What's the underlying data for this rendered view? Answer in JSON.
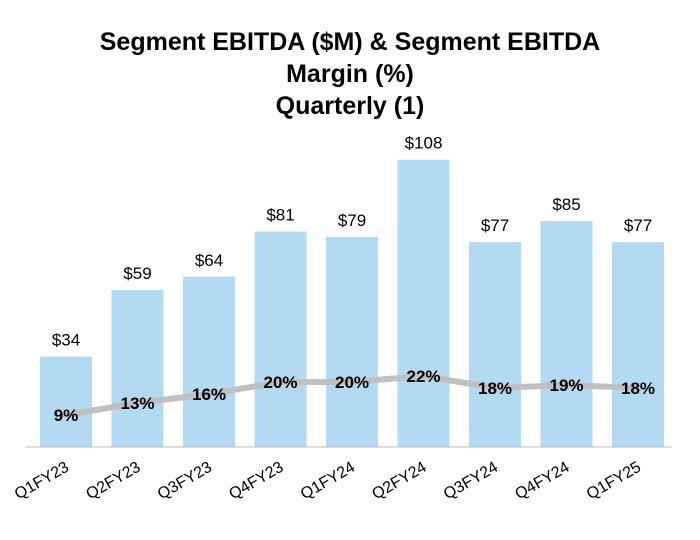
{
  "chart_data": {
    "type": "bar",
    "title_lines": [
      "Segment EBITDA ($M) & Segment EBITDA",
      "Margin (%)",
      "Quarterly (1)"
    ],
    "categories": [
      "Q1FY23",
      "Q2FY23",
      "Q3FY23",
      "Q4FY23",
      "Q1FY24",
      "Q2FY24",
      "Q3FY24",
      "Q4FY24",
      "Q1FY25"
    ],
    "series": [
      {
        "type": "bar",
        "values": [
          34,
          59,
          64,
          81,
          79,
          108,
          77,
          85,
          77
        ],
        "labels": [
          "$34",
          "$59",
          "$64",
          "$81",
          "$79",
          "$108",
          "$77",
          "$85",
          "$77"
        ],
        "color": "#b4d9f2"
      },
      {
        "type": "line",
        "values": [
          9,
          13,
          16,
          20,
          20,
          22,
          18,
          19,
          18
        ],
        "labels": [
          "9%",
          "13%",
          "16%",
          "20%",
          "20%",
          "22%",
          "18%",
          "19%",
          "18%"
        ],
        "color": "#c0c0c0"
      }
    ],
    "xlabel": "",
    "ylabel": "",
    "grid": false,
    "legend": "none"
  }
}
